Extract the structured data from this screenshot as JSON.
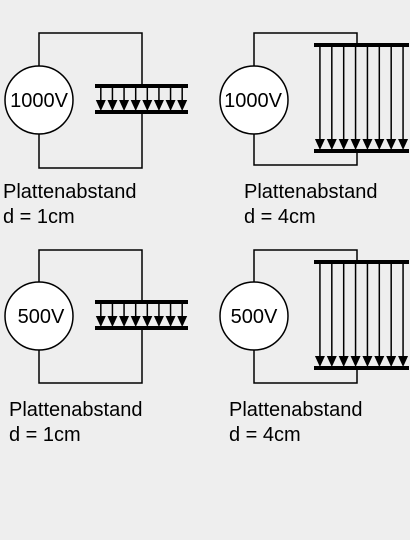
{
  "colors": {
    "background": "#eeeeee",
    "line": "#000000",
    "source_fill": "#ffffff"
  },
  "circuits": [
    {
      "voltage": "1000V",
      "caption_label": "Plattenabstand",
      "caption_distance": "d = 1cm"
    },
    {
      "voltage": "1000V",
      "caption_label": "Plattenabstand",
      "caption_distance": "d = 4cm"
    },
    {
      "voltage": "500V",
      "caption_label": "Plattenabstand",
      "caption_distance": "d = 1cm"
    },
    {
      "voltage": "500V",
      "caption_label": "Plattenabstand",
      "caption_distance": "d = 4cm"
    }
  ]
}
